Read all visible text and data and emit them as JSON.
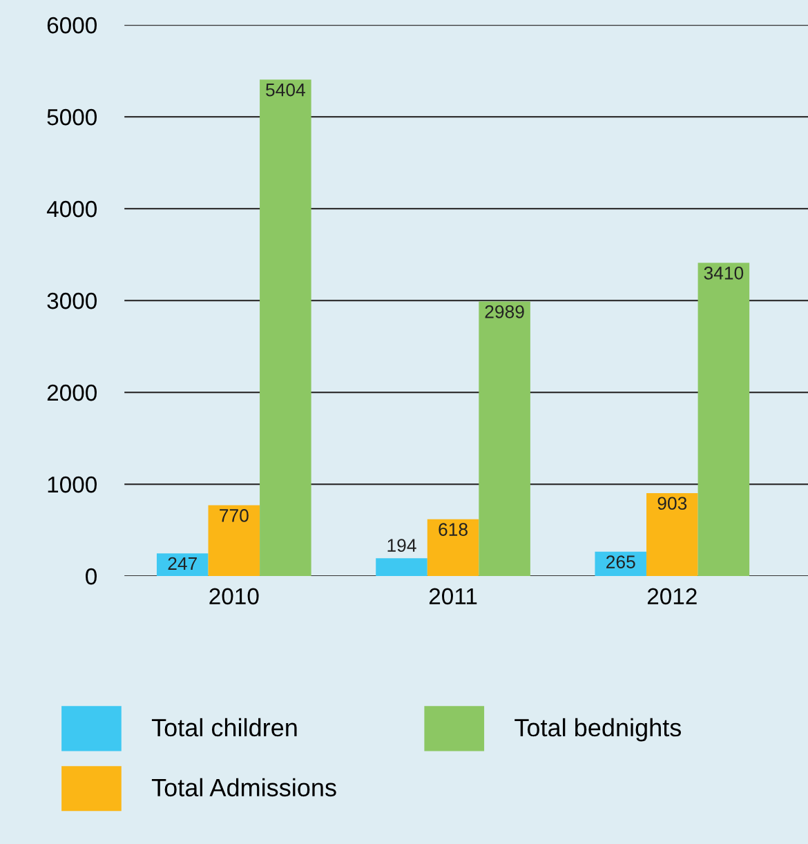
{
  "chart_data": {
    "type": "bar",
    "categories": [
      "2010",
      "2011",
      "2012"
    ],
    "series": [
      {
        "name": "Total children",
        "color": "#3ec8f2",
        "values": [
          247,
          194,
          265
        ]
      },
      {
        "name": "Total Admissions",
        "color": "#fbb616",
        "values": [
          770,
          618,
          903
        ]
      },
      {
        "name": "Total bednights",
        "color": "#8cc763",
        "values": [
          5404,
          2989,
          3410
        ]
      }
    ],
    "ylim": [
      0,
      6000
    ],
    "yticks": [
      0,
      1000,
      2000,
      3000,
      4000,
      5000,
      6000
    ],
    "grid": "y",
    "legend": "bottom",
    "data_labels": true
  }
}
